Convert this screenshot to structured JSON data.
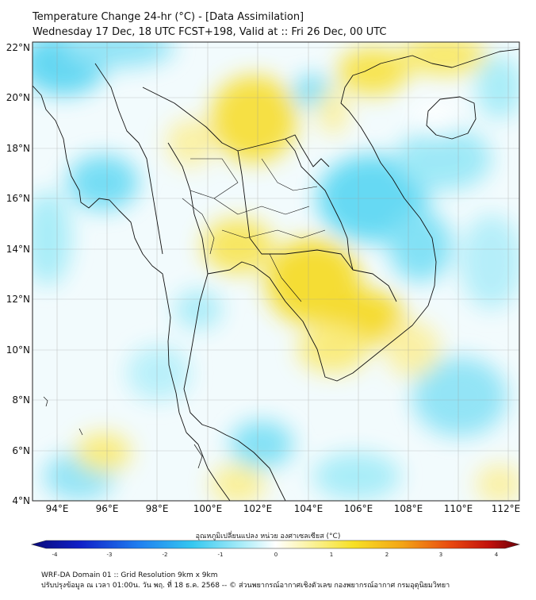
{
  "title": {
    "line1": "Temperature Change 24-hr (°C) - [Data Assimilation]",
    "line2": "Wednesday 17 Dec, 18 UTC FCST+198, Valid at :: Fri 26 Dec, 00 UTC"
  },
  "axes": {
    "lat_ticks": [
      "22°N",
      "20°N",
      "18°N",
      "16°N",
      "14°N",
      "12°N",
      "10°N",
      "8°N",
      "6°N",
      "4°N"
    ],
    "lon_ticks": [
      "94°E",
      "96°E",
      "98°E",
      "100°E",
      "102°E",
      "104°E",
      "106°E",
      "108°E",
      "110°E",
      "112°E"
    ],
    "lat_range": [
      4,
      22.2
    ],
    "lon_range": [
      93,
      112.5
    ]
  },
  "colorbar": {
    "label": "อุณหภูมิเปลี่ยนแปลง หน่วย องศาเซลเซียส (°C)",
    "ticks": [
      "-4",
      "-3",
      "-2",
      "-1",
      "0",
      "1",
      "2",
      "3",
      "4"
    ],
    "range": [
      -4,
      4
    ]
  },
  "footer": {
    "line1": "WRF-DA Domain 01 :: Grid Resolution 9km x 9km",
    "line2": "ปรับปรุงข้อมูล ณ เวลา 01:00น. วัน พฤ. ที่ 18 ธ.ค. 2568 -- © ส่วนพยากรณ์อากาศเชิงตัวเลข กองพยากรณ์อากาศ กรมอุตุนิยมวิทยา"
  },
  "colors": {
    "near_zero": "#ffffff",
    "cool": "#40d2f0",
    "warm": "#f5dc2a",
    "coastline": "#111111",
    "grid": "#9a9a9a"
  }
}
